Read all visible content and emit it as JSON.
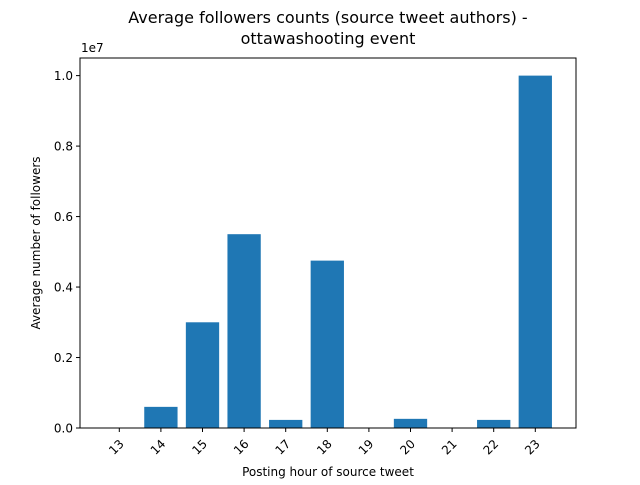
{
  "chart_data": {
    "type": "bar",
    "title_lines": [
      "Average followers counts (source tweet authors) -",
      "ottawashooting event"
    ],
    "xlabel": "Posting hour of source tweet",
    "ylabel": "Average number of followers",
    "y_offset_label": "1e7",
    "categories": [
      "13",
      "14",
      "15",
      "16",
      "17",
      "18",
      "19",
      "20",
      "21",
      "22",
      "23"
    ],
    "values": [
      0,
      600000,
      3000000,
      5500000,
      230000,
      4750000,
      0,
      260000,
      0,
      230000,
      10000000
    ],
    "ylim": [
      0,
      10500000
    ],
    "yticks": [
      0,
      2000000,
      4000000,
      6000000,
      8000000,
      10000000
    ],
    "ytick_labels": [
      "0.0",
      "0.2",
      "0.4",
      "0.6",
      "0.8",
      "1.0"
    ],
    "x_tick_rotation": 45,
    "bar_color": "#1f77b4",
    "grid": false,
    "legend": "none"
  }
}
